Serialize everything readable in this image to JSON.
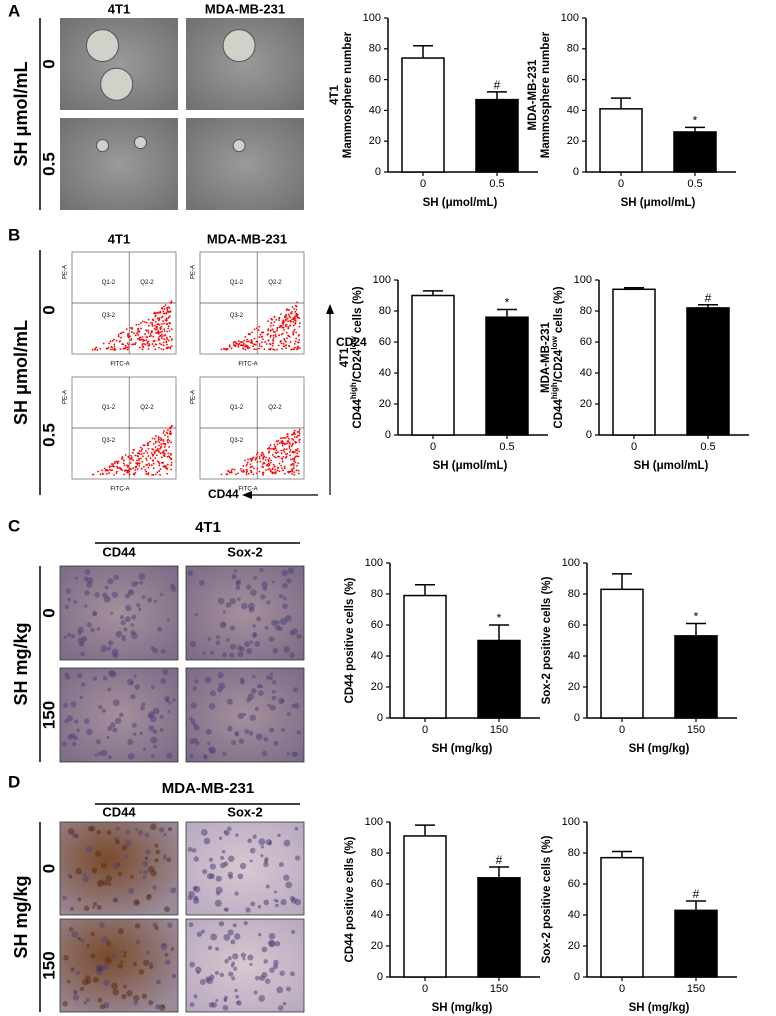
{
  "panels": [
    {
      "letter": "A",
      "columns": [
        "4T1",
        "MDA-MB-231"
      ],
      "row_title": "SH μmol/mL",
      "rows": [
        "0",
        "0.5"
      ]
    },
    {
      "letter": "B",
      "columns": [
        "4T1",
        "MDA-MB-231"
      ],
      "row_title": "SH μmol/mL",
      "rows": [
        "0",
        "0.5"
      ],
      "plot_texts": [
        "Q1-2",
        "Q2-2",
        "Q3-2",
        "PE-A",
        "FITC-A"
      ],
      "x_marker": "CD44",
      "y_marker": "CD24"
    },
    {
      "letter": "C",
      "group": "4T1",
      "columns": [
        "CD44",
        "Sox-2"
      ],
      "row_title": "SH mg/kg",
      "rows": [
        "0",
        "150"
      ]
    },
    {
      "letter": "D",
      "group": "MDA-MB-231",
      "columns": [
        "CD44",
        "Sox-2"
      ],
      "row_title": "SH mg/kg",
      "rows": [
        "0",
        "150"
      ]
    }
  ],
  "chart_data": [
    {
      "type": "bar",
      "categories": [
        "0",
        "0.5"
      ],
      "values": [
        74,
        47
      ],
      "errors": [
        8,
        5
      ],
      "annotation": "#",
      "colors": [
        "#ffffff",
        "#000000"
      ],
      "xlabel": "SH (μmol/mL)",
      "ylabel": [
        "4T1",
        "Mammosphere number"
      ],
      "ylim": [
        0,
        100
      ],
      "yticks": [
        0,
        20,
        40,
        60,
        80,
        100
      ]
    },
    {
      "type": "bar",
      "categories": [
        "0",
        "0.5"
      ],
      "values": [
        41,
        26
      ],
      "errors": [
        7,
        3
      ],
      "annotation": "*",
      "colors": [
        "#ffffff",
        "#000000"
      ],
      "xlabel": "SH (μmol/mL)",
      "ylabel": [
        "MDA-MB-231",
        "Mammosphere number"
      ],
      "ylim": [
        0,
        100
      ],
      "yticks": [
        0,
        20,
        40,
        60,
        80,
        100
      ]
    },
    {
      "type": "bar",
      "categories": [
        "0",
        "0.5"
      ],
      "values": [
        90,
        76
      ],
      "errors": [
        3,
        5
      ],
      "annotation": "*",
      "colors": [
        "#ffffff",
        "#000000"
      ],
      "xlabel": "SH (μmol/mL)",
      "ylabel": [
        "4T1"
      ],
      "ylabel_parts": [
        "CD44",
        "high",
        "/CD24",
        "low",
        " cells (%)"
      ],
      "ylim": [
        0,
        100
      ],
      "yticks": [
        0,
        20,
        40,
        60,
        80,
        100
      ]
    },
    {
      "type": "bar",
      "categories": [
        "0",
        "0.5"
      ],
      "values": [
        94,
        82
      ],
      "errors": [
        1,
        2
      ],
      "annotation": "#",
      "colors": [
        "#ffffff",
        "#000000"
      ],
      "xlabel": "SH (μmol/mL)",
      "ylabel": [
        "MDA-MB-231"
      ],
      "ylabel_parts": [
        "CD44",
        "high",
        "/CD24",
        "low",
        " cells (%)"
      ],
      "ylim": [
        0,
        100
      ],
      "yticks": [
        0,
        20,
        40,
        60,
        80,
        100
      ]
    },
    {
      "type": "bar",
      "categories": [
        "0",
        "150"
      ],
      "values": [
        79,
        50
      ],
      "errors": [
        7,
        10
      ],
      "annotation": "*",
      "colors": [
        "#ffffff",
        "#000000"
      ],
      "xlabel": "SH (mg/kg)",
      "ylabel": [
        "CD44 positive cells  (%)"
      ],
      "ylim": [
        0,
        100
      ],
      "yticks": [
        0,
        20,
        40,
        60,
        80,
        100
      ]
    },
    {
      "type": "bar",
      "categories": [
        "0",
        "150"
      ],
      "values": [
        83,
        53
      ],
      "errors": [
        10,
        8
      ],
      "annotation": "*",
      "colors": [
        "#ffffff",
        "#000000"
      ],
      "xlabel": "SH (mg/kg)",
      "ylabel": [
        "Sox-2 positive cells  (%)"
      ],
      "ylim": [
        0,
        100
      ],
      "yticks": [
        0,
        20,
        40,
        60,
        80,
        100
      ]
    },
    {
      "type": "bar",
      "categories": [
        "0",
        "150"
      ],
      "values": [
        91,
        64
      ],
      "errors": [
        7,
        7
      ],
      "annotation": "#",
      "colors": [
        "#ffffff",
        "#000000"
      ],
      "xlabel": "SH (mg/kg)",
      "ylabel": [
        "CD44 positive cells  (%)"
      ],
      "ylim": [
        0,
        100
      ],
      "yticks": [
        0,
        20,
        40,
        60,
        80,
        100
      ]
    },
    {
      "type": "bar",
      "categories": [
        "0",
        "150"
      ],
      "values": [
        77,
        43
      ],
      "errors": [
        4,
        6
      ],
      "annotation": "#",
      "colors": [
        "#ffffff",
        "#000000"
      ],
      "xlabel": "SH (mg/kg)",
      "ylabel": [
        "Sox-2 positive cells  (%)"
      ],
      "ylim": [
        0,
        100
      ],
      "yticks": [
        0,
        20,
        40,
        60,
        80,
        100
      ]
    }
  ]
}
